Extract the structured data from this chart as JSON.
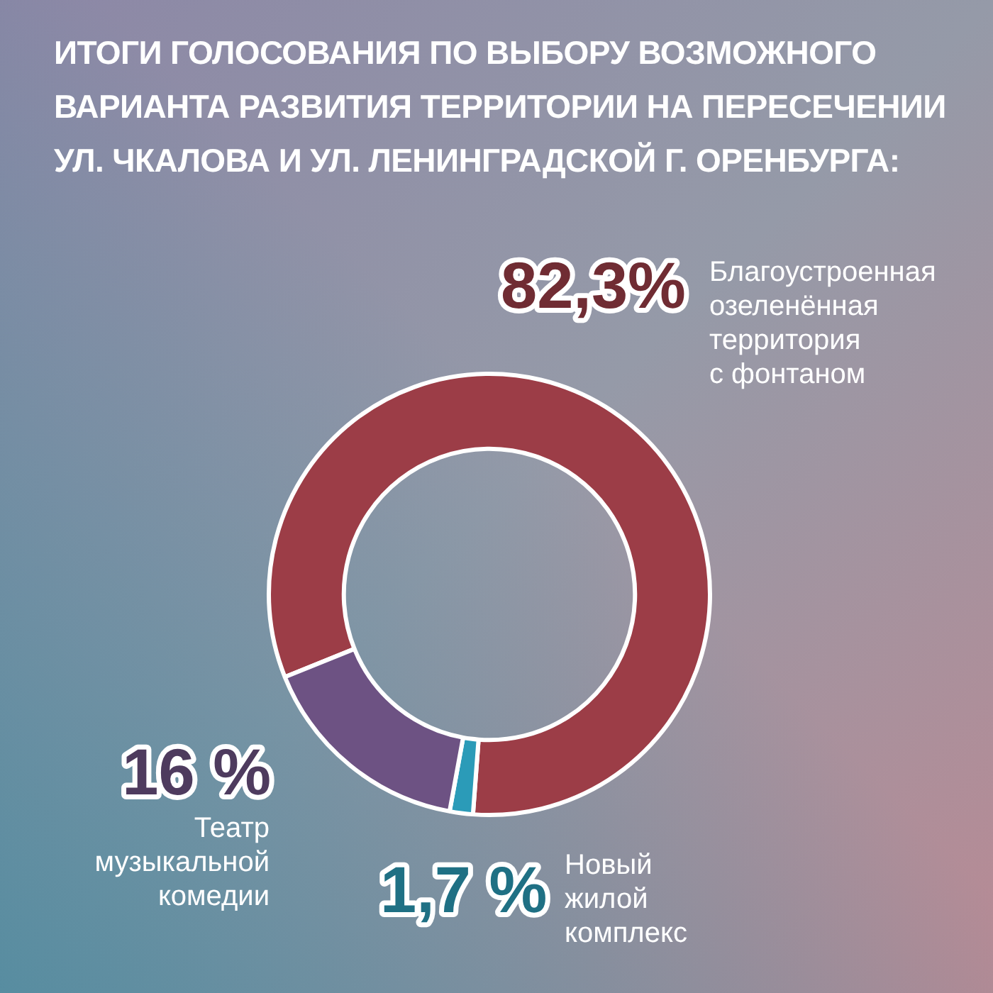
{
  "chart_data": {
    "type": "donut",
    "title": "ИТОГИ ГОЛОСОВАНИЯ ПО ВЫБОРУ ВОЗМОЖНОГО ВАРИАНТА РАЗВИТИЯ ТЕРРИТОРИИ НА ПЕРЕСЕЧЕНИИ УЛ. ЧКАЛОВА И УЛ. ЛЕНИНГРАДСКОЙ Г. ОРЕНБУРГА:",
    "categories": [
      "Благоустроенная озеленённая территория с фонтаном",
      "Новый жилой комплекс",
      "Театр музыкальной комедии"
    ],
    "values": [
      82.3,
      1.7,
      16
    ],
    "colors": [
      "#9c3d47",
      "#2b9bb8",
      "#6d5283"
    ],
    "value_labels": [
      "82,3%",
      "1,7 %",
      "16 %"
    ],
    "legend": false
  }
}
